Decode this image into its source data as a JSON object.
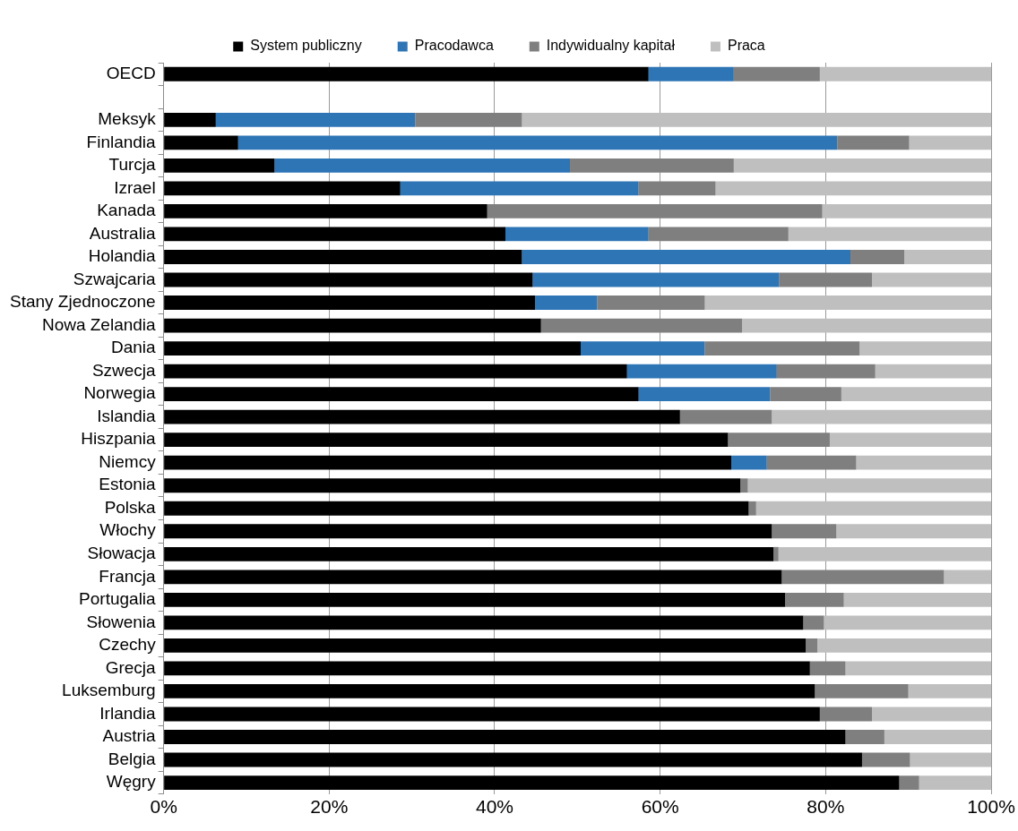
{
  "chart_data": {
    "type": "bar",
    "orientation": "horizontal",
    "stacked": true,
    "legend": "top",
    "grid": "x",
    "categories": [
      "OECD",
      null,
      "Meksyk",
      "Finlandia",
      "Turcja",
      "Izrael",
      "Kanada",
      "Australia",
      "Holandia",
      "Szwajcaria",
      "Stany Zjednoczone",
      "Nowa Zelandia",
      "Dania",
      "Szwecja",
      "Norwegia",
      "Islandia",
      "Hiszpania",
      "Niemcy",
      "Estonia",
      "Polska",
      "Włochy",
      "Słowacja",
      "Francja",
      "Portugalia",
      "Słowenia",
      "Czechy",
      "Grecja",
      "Luksemburg",
      "Irlandia",
      "Austria",
      "Belgia",
      "Węgry"
    ],
    "xlim": [
      0,
      100
    ],
    "xticks": [
      {
        "value": 0,
        "label": "0%"
      },
      {
        "value": 20,
        "label": "20%"
      },
      {
        "value": 40,
        "label": "40%"
      },
      {
        "value": 60,
        "label": "60%"
      },
      {
        "value": 80,
        "label": "80%"
      },
      {
        "value": 100,
        "label": "100%"
      }
    ],
    "series": [
      {
        "name": "System publiczny",
        "color": "#000000",
        "values": [
          58.6,
          null,
          6.3,
          9.0,
          13.4,
          28.6,
          39.1,
          41.3,
          43.3,
          44.6,
          44.9,
          45.6,
          50.4,
          56.0,
          57.4,
          62.4,
          68.2,
          68.6,
          69.7,
          70.7,
          73.5,
          73.7,
          74.7,
          75.1,
          77.3,
          77.6,
          78.1,
          78.7,
          79.3,
          82.4,
          84.4,
          88.9
        ]
      },
      {
        "name": "Pracodawca",
        "color": "#2e75b6",
        "values": [
          10.3,
          null,
          24.1,
          72.4,
          35.7,
          28.8,
          0,
          17.3,
          39.7,
          29.8,
          7.5,
          0,
          15.0,
          18.1,
          15.9,
          0,
          0,
          4.3,
          0,
          0,
          0,
          0,
          0,
          0,
          0,
          0,
          0,
          0,
          0,
          0,
          0,
          0
        ]
      },
      {
        "name": "Indywidualny kapitał",
        "color": "#7f7f7f",
        "values": [
          10.4,
          null,
          12.9,
          8.7,
          19.8,
          9.3,
          40.5,
          16.9,
          6.5,
          11.2,
          13.0,
          24.3,
          18.7,
          11.9,
          8.6,
          11.1,
          12.3,
          10.8,
          0.9,
          0.9,
          7.8,
          0.6,
          19.6,
          7.1,
          2.5,
          1.4,
          4.3,
          11.3,
          6.3,
          4.7,
          5.8,
          2.4
        ]
      },
      {
        "name": "Praca",
        "color": "#bfbfbf",
        "values": [
          20.7,
          null,
          56.7,
          9.9,
          31.1,
          33.3,
          20.4,
          24.5,
          10.5,
          14.4,
          34.6,
          30.1,
          15.9,
          14.0,
          18.1,
          26.5,
          19.5,
          16.3,
          29.4,
          28.4,
          18.7,
          25.7,
          5.7,
          17.8,
          20.2,
          21.0,
          17.6,
          10.0,
          14.4,
          12.9,
          9.8,
          8.7
        ]
      }
    ]
  }
}
